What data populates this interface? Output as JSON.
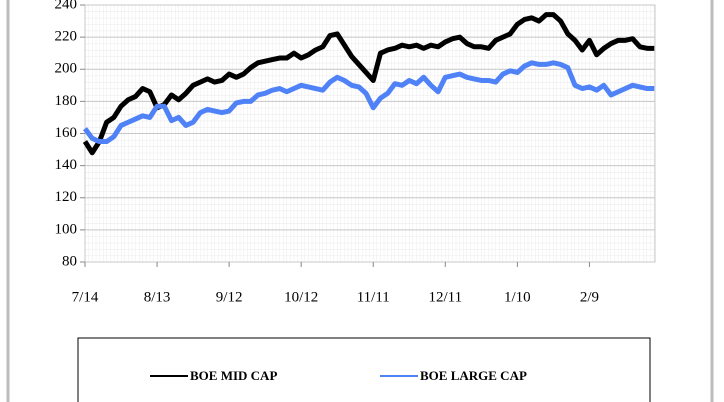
{
  "chart_data": {
    "type": "line",
    "categories": [
      "7/14",
      null,
      null,
      null,
      null,
      null,
      null,
      null,
      null,
      null,
      "8/13",
      null,
      null,
      null,
      null,
      null,
      null,
      null,
      null,
      null,
      "9/12",
      null,
      null,
      null,
      null,
      null,
      null,
      null,
      null,
      null,
      "10/12",
      null,
      null,
      null,
      null,
      null,
      null,
      null,
      null,
      null,
      "11/11",
      null,
      null,
      null,
      null,
      null,
      null,
      null,
      null,
      null,
      "12/11",
      null,
      null,
      null,
      null,
      null,
      null,
      null,
      null,
      null,
      "1/10",
      null,
      null,
      null,
      null,
      null,
      null,
      null,
      null,
      null,
      "2/9",
      null,
      null,
      null,
      null,
      null,
      null,
      null,
      null,
      null
    ],
    "series": [
      {
        "name": "BOE MID CAP",
        "color": "#000000",
        "values": [
          155,
          148,
          155,
          167,
          170,
          177,
          181,
          183,
          188,
          186,
          176,
          178,
          184,
          181,
          185,
          190,
          192,
          194,
          192,
          193,
          197,
          195,
          197,
          201,
          204,
          205,
          206,
          207,
          207,
          210,
          207,
          209,
          212,
          214,
          221,
          222,
          215,
          208,
          203,
          198,
          193,
          210,
          212,
          213,
          215,
          214,
          215,
          213,
          215,
          214,
          217,
          219,
          220,
          216,
          214,
          214,
          213,
          218,
          220,
          222,
          228,
          231,
          232,
          230,
          234,
          234,
          230,
          222,
          218,
          212,
          218,
          209,
          213,
          216,
          218,
          218,
          219,
          214,
          213,
          213
        ]
      },
      {
        "name": "BOE LARGE CAP",
        "color": "#4f81f7",
        "values": [
          163,
          157,
          155,
          155,
          158,
          165,
          167,
          169,
          171,
          170,
          177,
          177,
          168,
          170,
          165,
          167,
          173,
          175,
          174,
          173,
          174,
          179,
          180,
          180,
          184,
          185,
          187,
          188,
          186,
          188,
          190,
          189,
          188,
          187,
          192,
          195,
          193,
          190,
          189,
          185,
          176,
          182,
          185,
          191,
          190,
          193,
          191,
          195,
          190,
          186,
          195,
          196,
          197,
          195,
          194,
          193,
          193,
          192,
          197,
          199,
          198,
          202,
          204,
          203,
          203,
          204,
          203,
          201,
          190,
          188,
          189,
          187,
          190,
          184,
          186,
          188,
          190,
          189,
          188,
          188
        ]
      }
    ],
    "ylim": [
      80,
      240
    ],
    "yticks": [
      80,
      100,
      120,
      140,
      160,
      180,
      200,
      220,
      240
    ],
    "grid": true,
    "legend": "bottom"
  }
}
